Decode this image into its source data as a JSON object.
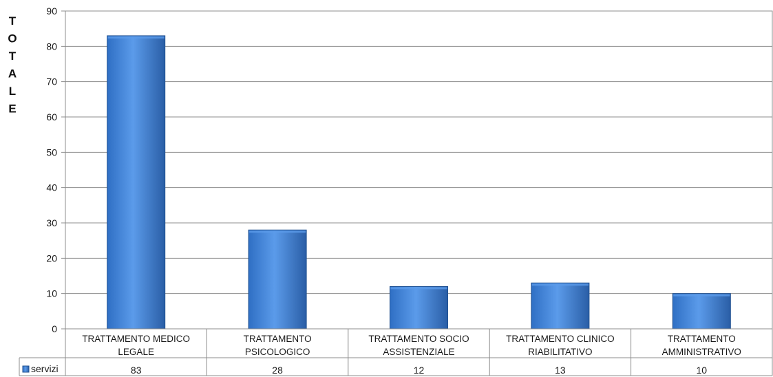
{
  "chart_data": {
    "type": "bar",
    "categories": [
      [
        "TRATTAMENTO MEDICO",
        "LEGALE"
      ],
      [
        "TRATTAMENTO",
        "PSICOLOGICO"
      ],
      [
        "TRATTAMENTO SOCIO",
        "ASSISTENZIALE"
      ],
      [
        "TRATTAMENTO CLINICO",
        "RIABILITATIVO"
      ],
      [
        "TRATTAMENTO",
        "AMMINISTRATIVO"
      ]
    ],
    "series": [
      {
        "name": "servizi",
        "values": [
          83,
          28,
          12,
          13,
          10
        ]
      }
    ],
    "ylabel": "TOTALE",
    "ylim": [
      0,
      90
    ],
    "yticks": [
      0,
      10,
      20,
      30,
      40,
      50,
      60,
      70,
      80,
      90
    ],
    "grid": true,
    "legend": "data-table"
  },
  "colors": {
    "bar_light": "#5b9bea",
    "bar_mid": "#3f7fd4",
    "bar_dark": "#2a5ea6",
    "bar_edge": "#1f4f8f",
    "grid": "#8c8c8c"
  }
}
